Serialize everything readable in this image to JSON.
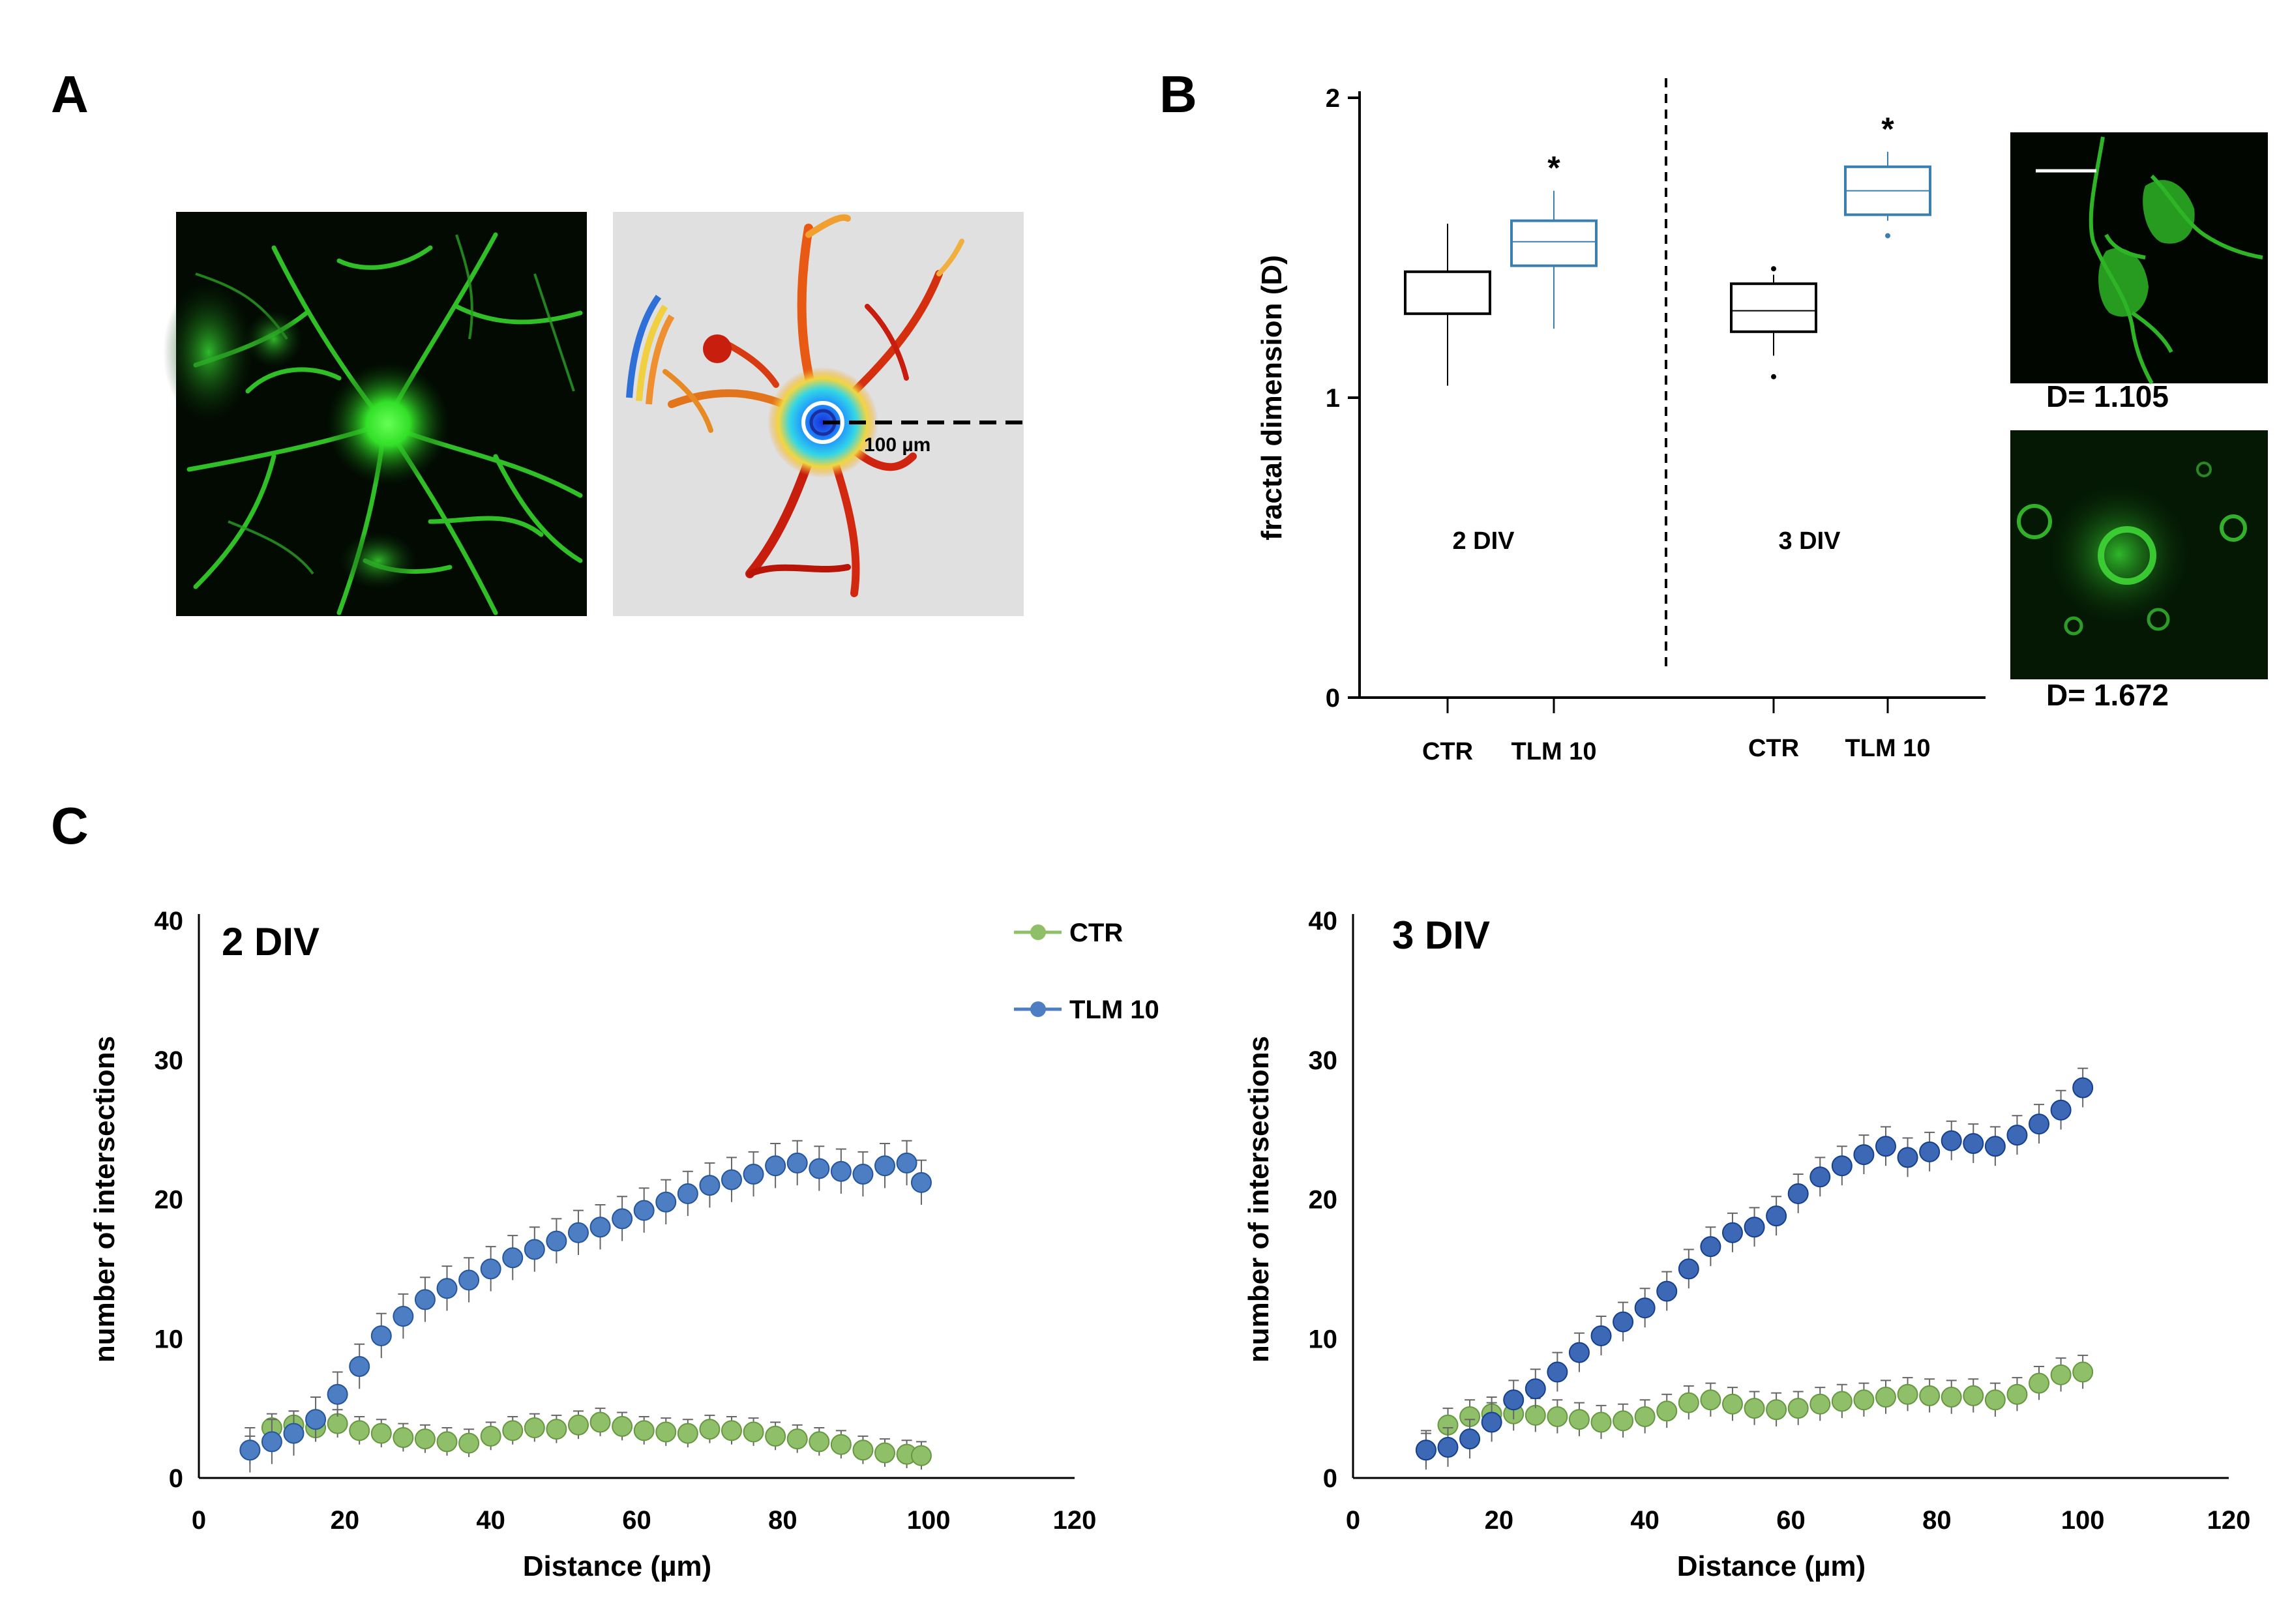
{
  "panels": {
    "a": "A",
    "b": "B",
    "c": "C"
  },
  "panel_a": {
    "scale_label": "100 µm"
  },
  "panel_b_images": {
    "top_value": "D= 1.105",
    "bottom_value": "D= 1.672"
  },
  "chart_data": [
    {
      "id": "fractal_box",
      "type": "box",
      "title": "",
      "ylabel": "fractal dimension (D)",
      "ylim": [
        0,
        2
      ],
      "yticks": [
        0,
        1,
        2
      ],
      "groups": [
        {
          "name": "2 DIV",
          "boxes": [
            {
              "label": "CTR",
              "color": "#000000",
              "whisker_low": 1.04,
              "q1": 1.28,
              "median": 1.28,
              "q3": 1.42,
              "whisker_high": 1.58,
              "outliers": [],
              "significant": false
            },
            {
              "label": "TLM 10",
              "color": "#3a7fb0",
              "whisker_low": 1.23,
              "q1": 1.44,
              "median": 1.52,
              "q3": 1.59,
              "whisker_high": 1.69,
              "outliers": [],
              "significant": true
            }
          ]
        },
        {
          "name": "3 DIV",
          "boxes": [
            {
              "label": "CTR",
              "color": "#000000",
              "whisker_low": 1.14,
              "q1": 1.22,
              "median": 1.29,
              "q3": 1.38,
              "whisker_high": 1.41,
              "outliers": [
                1.07,
                1.43
              ],
              "significant": false
            },
            {
              "label": "TLM 10",
              "color": "#3a7fb0",
              "whisker_low": 1.59,
              "q1": 1.61,
              "median": 1.69,
              "q3": 1.77,
              "whisker_high": 1.82,
              "outliers": [
                1.54
              ],
              "significant": true
            }
          ]
        }
      ],
      "significance_marker": "*"
    },
    {
      "id": "sholl_2div",
      "type": "scatter",
      "title": "2 DIV",
      "xlabel": "Distance  (µm)",
      "ylabel": "number of intersections",
      "xlim": [
        0,
        120
      ],
      "ylim": [
        0,
        40
      ],
      "xticks": [
        0,
        20,
        40,
        60,
        80,
        100,
        120
      ],
      "yticks": [
        0,
        10,
        20,
        30,
        40
      ],
      "series": [
        {
          "name": "CTR",
          "color": "#8fc069",
          "x": [
            7,
            10,
            13,
            16,
            19,
            22,
            25,
            28,
            31,
            34,
            37,
            40,
            43,
            46,
            49,
            52,
            55,
            58,
            61,
            64,
            67,
            70,
            73,
            76,
            79,
            82,
            85,
            88,
            91,
            94,
            97,
            99
          ],
          "y": [
            2.0,
            3.6,
            3.8,
            3.6,
            3.9,
            3.4,
            3.2,
            2.9,
            2.8,
            2.6,
            2.5,
            3.0,
            3.4,
            3.6,
            3.5,
            3.8,
            4.0,
            3.7,
            3.4,
            3.3,
            3.2,
            3.5,
            3.4,
            3.3,
            3.0,
            2.8,
            2.6,
            2.4,
            2.0,
            1.8,
            1.7,
            1.6
          ],
          "error": 1.0
        },
        {
          "name": "TLM 10",
          "color": "#4d7ec4",
          "x": [
            7,
            10,
            13,
            16,
            19,
            22,
            25,
            28,
            31,
            34,
            37,
            40,
            43,
            46,
            49,
            52,
            55,
            58,
            61,
            64,
            67,
            70,
            73,
            76,
            79,
            82,
            85,
            88,
            91,
            94,
            97,
            99
          ],
          "y": [
            2.0,
            2.6,
            3.2,
            4.2,
            6.0,
            8.0,
            10.2,
            11.6,
            12.8,
            13.6,
            14.2,
            15.0,
            15.8,
            16.4,
            17.0,
            17.6,
            18.0,
            18.6,
            19.2,
            19.8,
            20.4,
            21.0,
            21.4,
            21.8,
            22.4,
            22.6,
            22.2,
            22.0,
            21.8,
            22.4,
            22.6,
            21.2
          ],
          "error": 1.6
        }
      ]
    },
    {
      "id": "sholl_3div",
      "type": "scatter",
      "title": "3 DIV",
      "xlabel": "Distance  (µm)",
      "ylabel": "number of intersections",
      "xlim": [
        0,
        120
      ],
      "ylim": [
        0,
        40
      ],
      "xticks": [
        0,
        20,
        40,
        60,
        80,
        100,
        120
      ],
      "yticks": [
        0,
        10,
        20,
        30,
        40
      ],
      "series": [
        {
          "name": "CTR",
          "color": "#8fc069",
          "x": [
            10,
            13,
            16,
            19,
            22,
            25,
            28,
            31,
            34,
            37,
            40,
            43,
            46,
            49,
            52,
            55,
            58,
            61,
            64,
            67,
            70,
            73,
            76,
            79,
            82,
            85,
            88,
            91,
            94,
            97,
            100
          ],
          "y": [
            2.0,
            3.8,
            4.4,
            4.6,
            4.6,
            4.5,
            4.4,
            4.2,
            4.0,
            4.1,
            4.4,
            4.8,
            5.4,
            5.6,
            5.3,
            5.0,
            4.9,
            5.0,
            5.3,
            5.5,
            5.6,
            5.8,
            6.0,
            5.9,
            5.8,
            5.9,
            5.6,
            6.0,
            6.8,
            7.4,
            7.6
          ],
          "error": 1.2
        },
        {
          "name": "TLM 10",
          "color": "#3d68b6",
          "x": [
            10,
            13,
            16,
            19,
            22,
            25,
            28,
            31,
            34,
            37,
            40,
            43,
            46,
            49,
            52,
            55,
            58,
            61,
            64,
            67,
            70,
            73,
            76,
            79,
            82,
            85,
            88,
            91,
            94,
            97,
            100
          ],
          "y": [
            2.0,
            2.2,
            2.8,
            4.0,
            5.6,
            6.4,
            7.6,
            9.0,
            10.2,
            11.2,
            12.2,
            13.4,
            15.0,
            16.6,
            17.6,
            18.0,
            18.8,
            20.4,
            21.6,
            22.4,
            23.2,
            23.8,
            23.0,
            23.4,
            24.2,
            24.0,
            23.8,
            24.6,
            25.4,
            26.4,
            28.0
          ],
          "error": 1.4
        }
      ]
    }
  ]
}
